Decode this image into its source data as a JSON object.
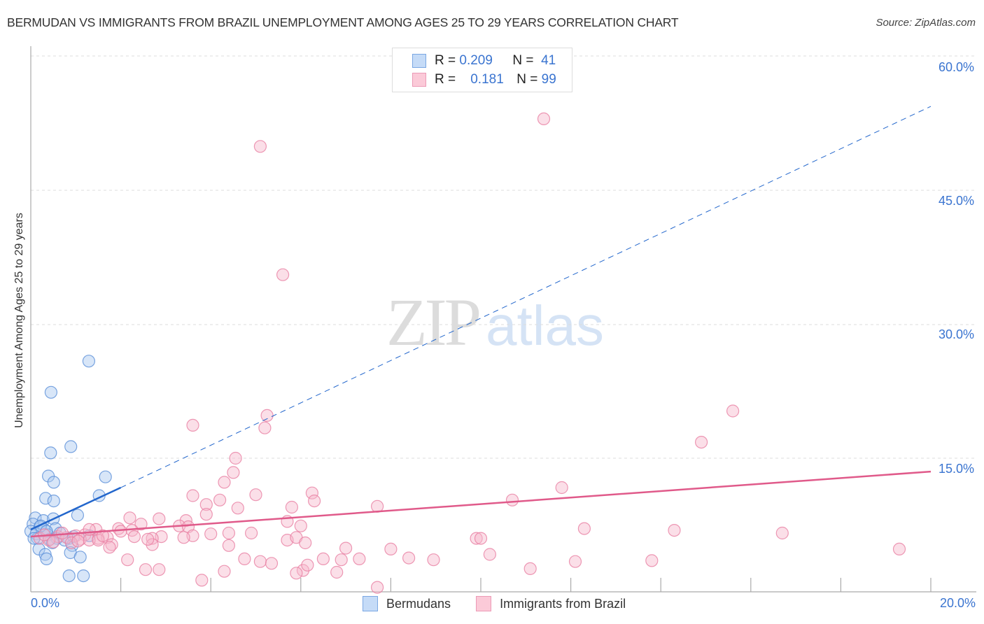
{
  "header": {
    "title": "BERMUDAN VS IMMIGRANTS FROM BRAZIL UNEMPLOYMENT AMONG AGES 25 TO 29 YEARS CORRELATION CHART",
    "source": "Source: ZipAtlas.com"
  },
  "legend_box": {
    "rows": [
      {
        "r_label": "R =",
        "r_value": "0.209",
        "n_label": "N =",
        "n_value": "41",
        "color": "#a9c8f0"
      },
      {
        "r_label": "R =",
        "r_value": "0.181",
        "n_label": "N =",
        "n_value": "99",
        "color": "#f7b8cb"
      }
    ]
  },
  "axes": {
    "y_label": "Unemployment Among Ages 25 to 29 years",
    "y_ticks": [
      "60.0%",
      "45.0%",
      "30.0%",
      "15.0%"
    ],
    "x_ticks": [
      "0.0%",
      "20.0%"
    ]
  },
  "bottom_legend": {
    "items": [
      {
        "label": "Bermudans",
        "color": "#a9c8f0"
      },
      {
        "label": "Immigrants from Brazil",
        "color": "#f7b8cb"
      }
    ]
  },
  "watermark": {
    "zip": "ZIP",
    "atlas": "atlas"
  },
  "colors": {
    "blue_fill": "#a9c8f0",
    "blue_stroke": "#5a8fd8",
    "blue_line": "#2266cc",
    "pink_fill": "#f7b8cb",
    "pink_stroke": "#e87fa2",
    "pink_line": "#e05a8a",
    "tick_text": "#3a74d0",
    "grid": "#d8d8d8"
  },
  "chart_data": {
    "type": "scatter",
    "title": "BERMUDAN VS IMMIGRANTS FROM BRAZIL UNEMPLOYMENT AMONG AGES 25 TO 29 YEARS CORRELATION CHART",
    "xlabel": "",
    "ylabel": "Unemployment Among Ages 25 to 29 years",
    "xlim": [
      0,
      20
    ],
    "ylim": [
      0,
      60
    ],
    "x_ticks": [
      0,
      20
    ],
    "y_ticks": [
      15,
      30,
      45,
      60
    ],
    "grid": true,
    "legend_position": "top-center",
    "series": [
      {
        "name": "Bermudans",
        "R": 0.209,
        "N": 41,
        "trend": {
          "x0": 0,
          "y0": 7.0,
          "x1": 2.0,
          "y1": 11.7,
          "extended_to": {
            "x": 20,
            "y": 54.5
          },
          "style": "solid then dashed"
        },
        "points": [
          [
            1.29,
            25.9
          ],
          [
            0.45,
            22.4
          ],
          [
            0.44,
            15.6
          ],
          [
            0.89,
            16.3
          ],
          [
            0.39,
            13.0
          ],
          [
            0.51,
            12.3
          ],
          [
            1.66,
            12.9
          ],
          [
            0.33,
            10.5
          ],
          [
            0.51,
            10.2
          ],
          [
            1.52,
            10.8
          ],
          [
            1.04,
            8.6
          ],
          [
            0.1,
            8.3
          ],
          [
            0.28,
            8.0
          ],
          [
            0.5,
            8.2
          ],
          [
            0.05,
            7.6
          ],
          [
            0.2,
            7.3
          ],
          [
            0.3,
            7.0
          ],
          [
            0.55,
            7.1
          ],
          [
            0.0,
            6.8
          ],
          [
            0.12,
            6.5
          ],
          [
            0.38,
            6.4
          ],
          [
            0.65,
            6.6
          ],
          [
            0.85,
            6.0
          ],
          [
            0.15,
            6.0
          ],
          [
            0.42,
            5.9
          ],
          [
            0.58,
            6.0
          ],
          [
            0.75,
            5.8
          ],
          [
            0.95,
            6.2
          ],
          [
            1.3,
            6.3
          ],
          [
            0.22,
            7.4
          ],
          [
            0.35,
            6.8
          ],
          [
            0.07,
            6.0
          ],
          [
            0.48,
            5.5
          ],
          [
            0.92,
            5.2
          ],
          [
            0.18,
            4.8
          ],
          [
            0.32,
            4.2
          ],
          [
            0.35,
            3.7
          ],
          [
            0.88,
            4.4
          ],
          [
            1.1,
            3.9
          ],
          [
            0.85,
            1.8
          ],
          [
            1.17,
            1.8
          ]
        ]
      },
      {
        "name": "Immigrants from Brazil",
        "R": 0.181,
        "N": 99,
        "trend": {
          "x0": 0,
          "y0": 6.2,
          "x1": 20,
          "y1": 13.5,
          "style": "solid"
        },
        "points": [
          [
            11.4,
            53.1
          ],
          [
            5.1,
            50.0
          ],
          [
            5.6,
            35.6
          ],
          [
            15.6,
            20.3
          ],
          [
            3.6,
            18.7
          ],
          [
            5.2,
            18.4
          ],
          [
            5.25,
            19.8
          ],
          [
            14.9,
            16.8
          ],
          [
            4.55,
            15.0
          ],
          [
            4.5,
            13.4
          ],
          [
            4.3,
            12.3
          ],
          [
            11.8,
            11.7
          ],
          [
            6.25,
            11.1
          ],
          [
            5.0,
            10.9
          ],
          [
            3.6,
            10.8
          ],
          [
            4.2,
            10.3
          ],
          [
            6.3,
            10.2
          ],
          [
            10.7,
            10.3
          ],
          [
            3.9,
            9.8
          ],
          [
            7.7,
            9.6
          ],
          [
            5.8,
            9.5
          ],
          [
            4.6,
            9.4
          ],
          [
            3.9,
            8.7
          ],
          [
            2.85,
            8.2
          ],
          [
            2.2,
            8.3
          ],
          [
            3.45,
            8.0
          ],
          [
            5.7,
            7.9
          ],
          [
            2.45,
            7.6
          ],
          [
            3.3,
            7.4
          ],
          [
            3.5,
            7.3
          ],
          [
            6.0,
            7.4
          ],
          [
            12.3,
            7.1
          ],
          [
            14.3,
            6.9
          ],
          [
            16.7,
            6.6
          ],
          [
            1.45,
            7.0
          ],
          [
            1.95,
            7.1
          ],
          [
            2.0,
            6.8
          ],
          [
            2.25,
            6.9
          ],
          [
            4.4,
            6.6
          ],
          [
            4.9,
            6.6
          ],
          [
            3.6,
            6.3
          ],
          [
            4.0,
            6.5
          ],
          [
            1.0,
            6.3
          ],
          [
            1.2,
            6.4
          ],
          [
            1.5,
            6.0
          ],
          [
            1.7,
            6.1
          ],
          [
            0.6,
            6.2
          ],
          [
            0.8,
            6.1
          ],
          [
            1.1,
            5.9
          ],
          [
            1.3,
            5.8
          ],
          [
            0.2,
            6.0
          ],
          [
            0.4,
            5.8
          ],
          [
            2.9,
            6.2
          ],
          [
            2.7,
            6.0
          ],
          [
            3.4,
            6.1
          ],
          [
            5.7,
            5.8
          ],
          [
            9.9,
            6.0
          ],
          [
            10.0,
            6.0
          ],
          [
            5.9,
            6.1
          ],
          [
            0.9,
            5.5
          ],
          [
            2.7,
            5.3
          ],
          [
            1.8,
            5.3
          ],
          [
            1.75,
            5.0
          ],
          [
            4.4,
            5.2
          ],
          [
            0.5,
            5.6
          ],
          [
            8.0,
            4.8
          ],
          [
            10.2,
            4.2
          ],
          [
            7.0,
            4.9
          ],
          [
            19.3,
            4.8
          ],
          [
            13.8,
            3.5
          ],
          [
            2.15,
            3.6
          ],
          [
            4.75,
            3.7
          ],
          [
            5.1,
            3.4
          ],
          [
            6.5,
            3.7
          ],
          [
            6.9,
            3.6
          ],
          [
            7.3,
            3.7
          ],
          [
            8.4,
            3.8
          ],
          [
            8.95,
            3.6
          ],
          [
            1.05,
            5.7
          ],
          [
            2.55,
            2.5
          ],
          [
            2.85,
            2.5
          ],
          [
            5.35,
            3.2
          ],
          [
            6.05,
            2.4
          ],
          [
            6.8,
            2.2
          ],
          [
            11.1,
            2.6
          ],
          [
            12.1,
            3.4
          ],
          [
            1.5,
            5.8
          ],
          [
            0.7,
            6.6
          ],
          [
            1.3,
            7.0
          ],
          [
            6.15,
            3.0
          ],
          [
            5.9,
            2.1
          ],
          [
            3.8,
            1.3
          ],
          [
            7.7,
            0.5
          ],
          [
            2.6,
            5.9
          ],
          [
            4.3,
            2.3
          ],
          [
            6.1,
            5.5
          ],
          [
            2.3,
            6.2
          ],
          [
            1.6,
            6.3
          ],
          [
            0.3,
            6.4
          ]
        ]
      }
    ]
  }
}
